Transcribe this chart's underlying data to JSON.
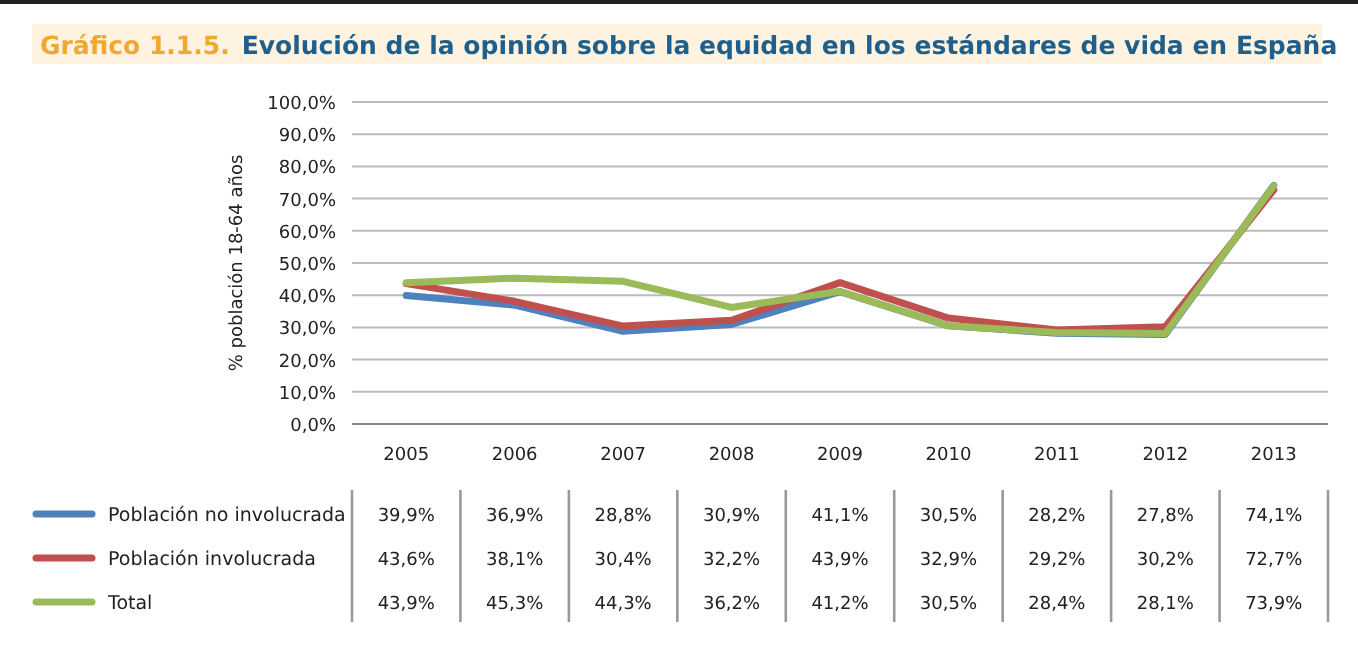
{
  "chart_data": {
    "type": "line",
    "title": "Gráfico 1.1.5.",
    "subtitle": "Evolución de la opinión sobre la equidad en los estándares de vida en España",
    "ylabel": "% población 18-64 años",
    "categories": [
      "2005",
      "2006",
      "2007",
      "2008",
      "2009",
      "2010",
      "2011",
      "2012",
      "2013"
    ],
    "series": [
      {
        "name": "Población no involucrada",
        "color": "#4f81bd",
        "values": [
          39.9,
          36.9,
          28.8,
          30.9,
          41.1,
          30.5,
          28.2,
          27.8,
          74.1
        ],
        "value_labels": [
          "39,9%",
          "36,9%",
          "28,8%",
          "30,9%",
          "41,1%",
          "30,5%",
          "28,2%",
          "27,8%",
          "74,1%"
        ]
      },
      {
        "name": "Población involucrada",
        "color": "#c0504d",
        "values": [
          43.6,
          38.1,
          30.4,
          32.2,
          43.9,
          32.9,
          29.2,
          30.2,
          72.7
        ],
        "value_labels": [
          "43,6%",
          "38,1%",
          "30,4%",
          "32,2%",
          "43,9%",
          "32,9%",
          "29,2%",
          "30,2%",
          "72,7%"
        ]
      },
      {
        "name": "Total",
        "color": "#9bbb59",
        "values": [
          43.9,
          45.3,
          44.3,
          36.2,
          41.2,
          30.5,
          28.4,
          28.1,
          73.9
        ],
        "value_labels": [
          "43,9%",
          "45,3%",
          "44,3%",
          "36,2%",
          "41,2%",
          "30,5%",
          "28,4%",
          "28,1%",
          "73,9%"
        ]
      }
    ],
    "ylim": [
      0,
      100
    ],
    "yticks": [
      {
        "value": 0,
        "label": "0,0%"
      },
      {
        "value": 10,
        "label": "10,0%"
      },
      {
        "value": 20,
        "label": "20,0%"
      },
      {
        "value": 30,
        "label": "30,0%"
      },
      {
        "value": 40,
        "label": "40,0%"
      },
      {
        "value": 50,
        "label": "50,0%"
      },
      {
        "value": 60,
        "label": "60,0%"
      },
      {
        "value": 70,
        "label": "70,0%"
      },
      {
        "value": 80,
        "label": "80,0%"
      },
      {
        "value": 90,
        "label": "90,0%"
      },
      {
        "value": 100,
        "label": "100,0%"
      }
    ],
    "grid": "y",
    "legend": "bottom",
    "line_style": "solid",
    "marker": "none"
  }
}
